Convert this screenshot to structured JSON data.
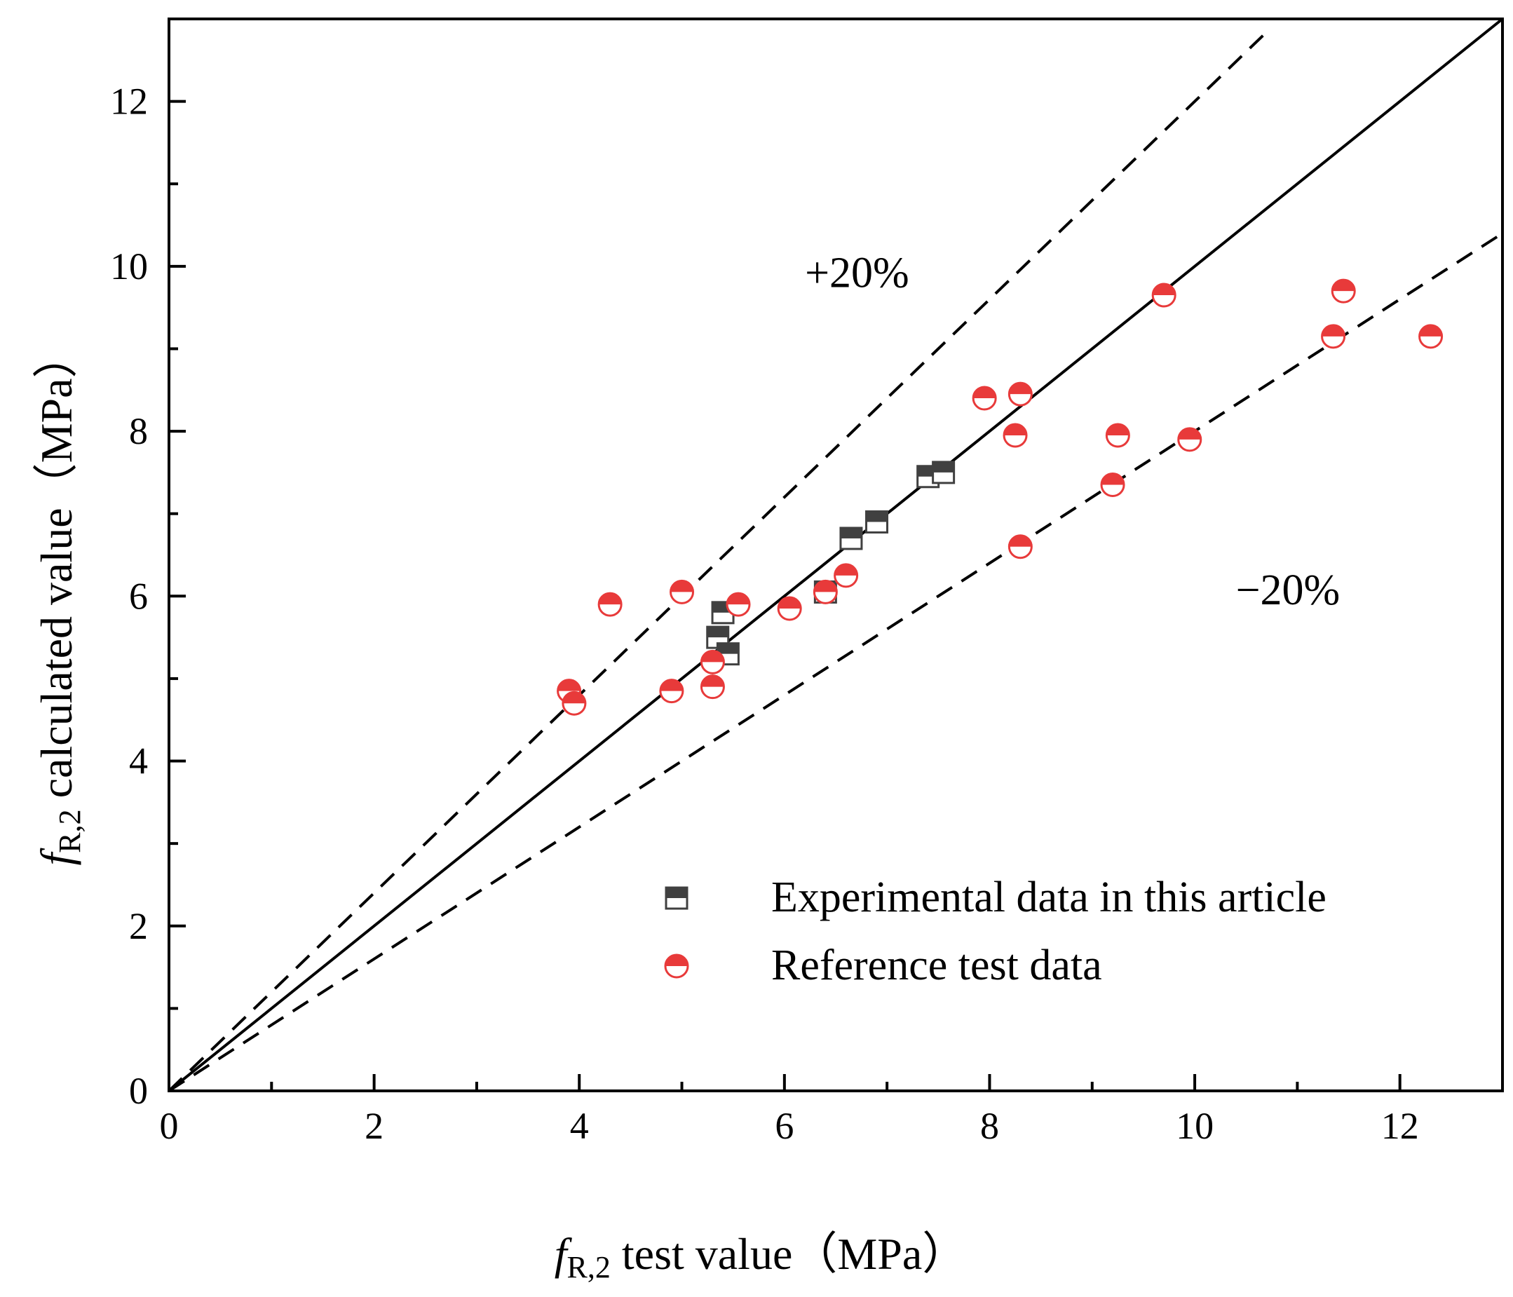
{
  "chart_data": {
    "type": "scatter",
    "title": "",
    "xlabel": {
      "symbol": "f",
      "subscript": "R,2",
      "text": " test value（MPa）"
    },
    "ylabel": {
      "symbol": "f",
      "subscript": "R,2",
      "text": " calculated value（MPa）"
    },
    "xlim": [
      0,
      13
    ],
    "ylim": [
      0,
      13
    ],
    "major_ticks": [
      0,
      2,
      4,
      6,
      8,
      10,
      12
    ],
    "major_tick_labels": [
      "0",
      "2",
      "4",
      "6",
      "8",
      "10",
      "12"
    ],
    "minor_ticks": [
      1,
      3,
      5,
      7,
      9,
      11
    ],
    "grid": false,
    "legend_position": "bottom-right",
    "reference_lines": [
      {
        "name": "equality",
        "slope": 1.0,
        "style": "solid",
        "x_range": [
          0,
          13
        ]
      },
      {
        "name": "plus-20",
        "slope": 1.2,
        "style": "dashed",
        "x_range": [
          0,
          10.7
        ]
      },
      {
        "name": "minus-20",
        "slope": 0.8,
        "style": "dashed",
        "x_range": [
          0,
          13
        ]
      }
    ],
    "annotations": [
      {
        "text": "+20%",
        "x": 6.2,
        "y": 9.75
      },
      {
        "text": "−20%",
        "x": 10.4,
        "y": 5.9
      }
    ],
    "series": [
      {
        "name": "Experimental data in this article",
        "marker": "half-filled-square",
        "color": "#404040",
        "points": [
          {
            "x": 5.35,
            "y": 5.5
          },
          {
            "x": 5.4,
            "y": 5.8
          },
          {
            "x": 5.45,
            "y": 5.3
          },
          {
            "x": 6.4,
            "y": 6.05
          },
          {
            "x": 6.65,
            "y": 6.7
          },
          {
            "x": 6.9,
            "y": 6.9
          },
          {
            "x": 7.4,
            "y": 7.45
          },
          {
            "x": 7.55,
            "y": 7.5
          }
        ]
      },
      {
        "name": "Reference test data",
        "marker": "half-filled-circle",
        "color": "#e83a3a",
        "points": [
          {
            "x": 3.9,
            "y": 4.85
          },
          {
            "x": 3.95,
            "y": 4.7
          },
          {
            "x": 4.3,
            "y": 5.9
          },
          {
            "x": 4.9,
            "y": 4.85
          },
          {
            "x": 5.0,
            "y": 6.05
          },
          {
            "x": 5.3,
            "y": 5.2
          },
          {
            "x": 5.3,
            "y": 4.9
          },
          {
            "x": 5.55,
            "y": 5.9
          },
          {
            "x": 6.05,
            "y": 5.85
          },
          {
            "x": 6.4,
            "y": 6.05
          },
          {
            "x": 6.6,
            "y": 6.25
          },
          {
            "x": 7.95,
            "y": 8.4
          },
          {
            "x": 8.25,
            "y": 7.95
          },
          {
            "x": 8.3,
            "y": 8.45
          },
          {
            "x": 8.3,
            "y": 6.6
          },
          {
            "x": 9.2,
            "y": 7.35
          },
          {
            "x": 9.25,
            "y": 7.95
          },
          {
            "x": 9.7,
            "y": 9.65
          },
          {
            "x": 9.95,
            "y": 7.9
          },
          {
            "x": 11.35,
            "y": 9.15
          },
          {
            "x": 11.45,
            "y": 9.7
          },
          {
            "x": 12.3,
            "y": 9.15
          }
        ]
      }
    ]
  }
}
